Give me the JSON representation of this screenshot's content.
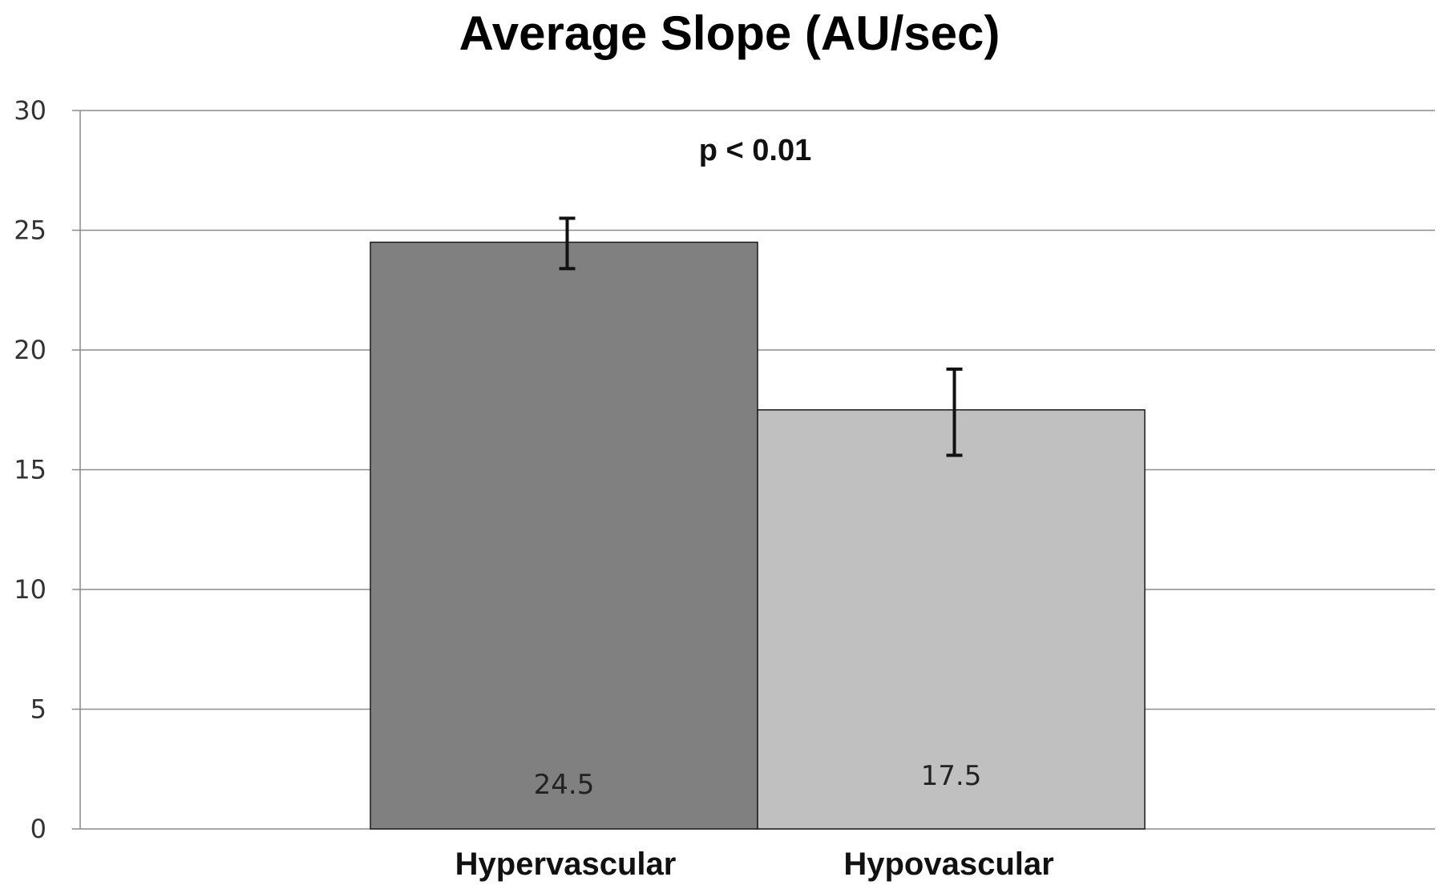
{
  "chart_data": {
    "type": "bar",
    "title": "Average Slope (AU/sec)",
    "categories": [
      "Hypervascular",
      "Hypovascular"
    ],
    "values": [
      24.5,
      17.5
    ],
    "data_labels": [
      "24.5",
      "17.5"
    ],
    "error_bars": [
      [
        23.4,
        25.5
      ],
      [
        15.6,
        19.2
      ]
    ],
    "colors": [
      "#808080",
      "#c0c0c0"
    ],
    "ylim": [
      0,
      30
    ],
    "yticks": [
      0,
      5,
      10,
      15,
      20,
      25,
      30
    ],
    "grid": true,
    "legend": "none",
    "annotation": "p < 0.01"
  }
}
